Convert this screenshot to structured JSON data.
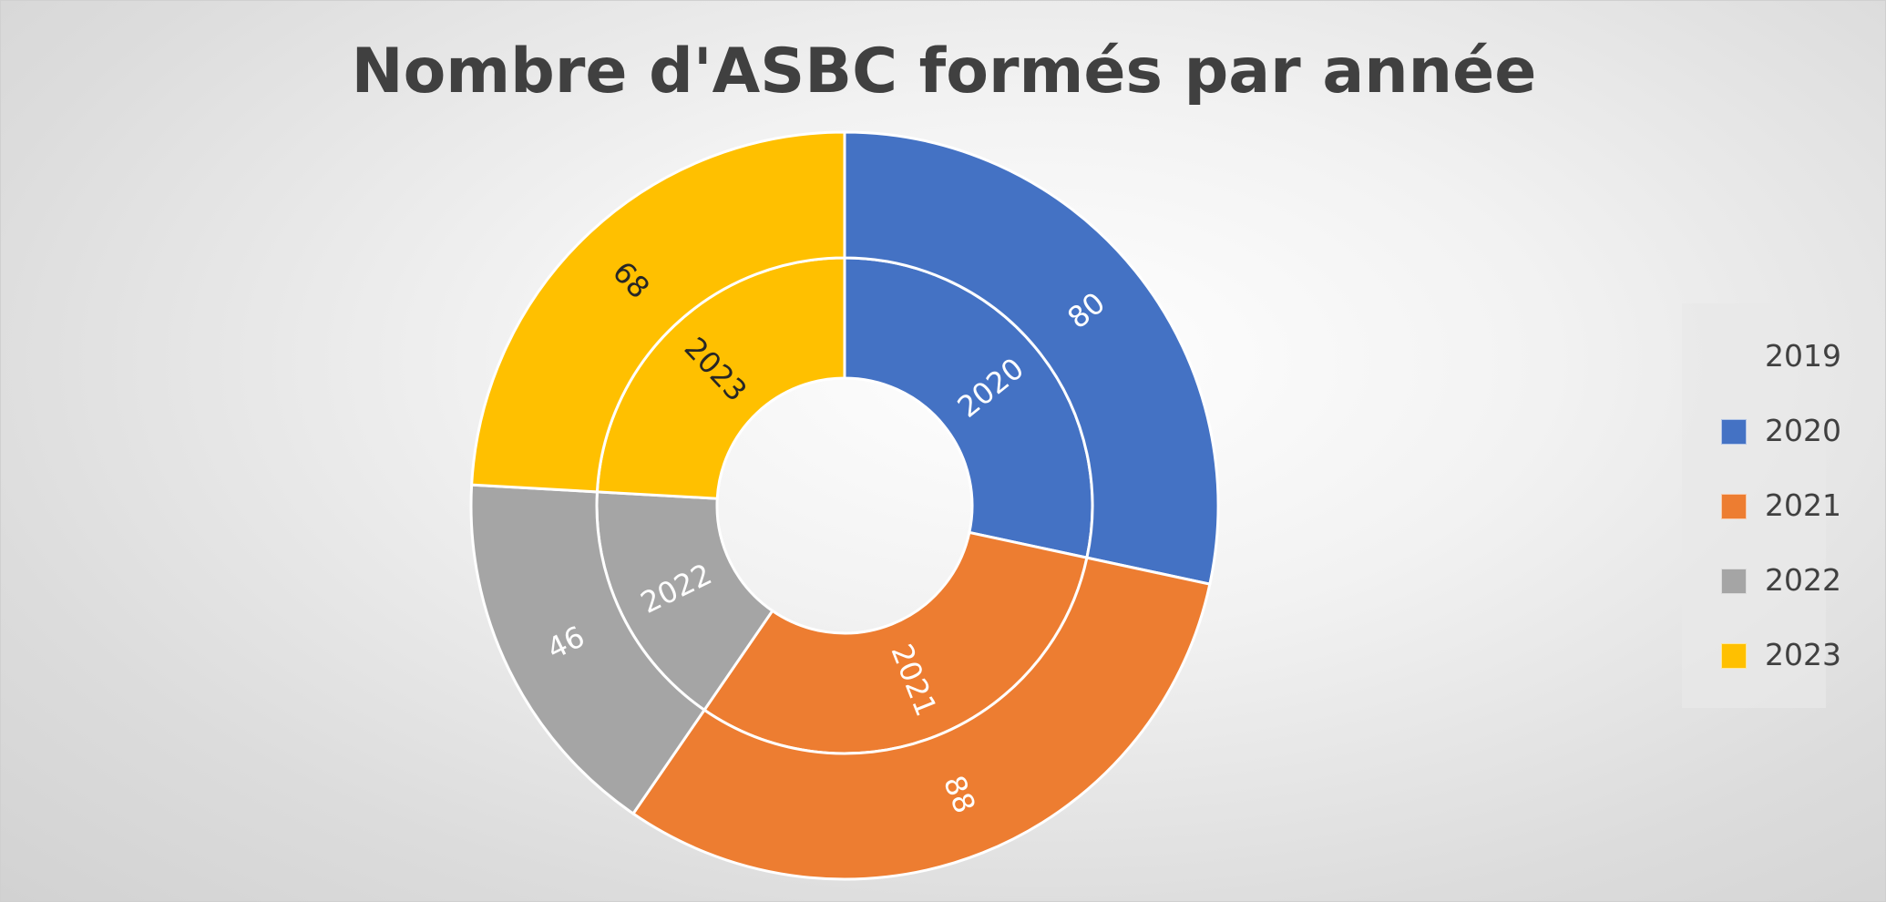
{
  "chart_data": {
    "type": "doughnut",
    "title": "Nombre d'ASBC formés par année",
    "categories": [
      "2019",
      "2020",
      "2021",
      "2022",
      "2023"
    ],
    "series": [
      {
        "values": [
          0,
          80,
          88,
          46,
          68
        ],
        "labels": [
          "",
          "2020",
          "2021",
          "2022",
          "2023"
        ]
      },
      {
        "values": [
          0,
          80,
          88,
          46,
          68
        ],
        "labels": [
          "",
          "80",
          "88",
          "46",
          "68"
        ]
      }
    ],
    "colors": {
      "2019": "#5B9BD5",
      "2020": "#4472C4",
      "2021": "#ED7D31",
      "2022": "#A5A5A5",
      "2023": "#FFC000"
    },
    "label_colors": {
      "2020": "#ffffff",
      "2021": "#ffffff",
      "2022": "#ffffff",
      "2023": "#262626"
    },
    "legend": {
      "position": "right",
      "items": [
        "2019",
        "2020",
        "2021",
        "2022",
        "2023"
      ]
    }
  }
}
